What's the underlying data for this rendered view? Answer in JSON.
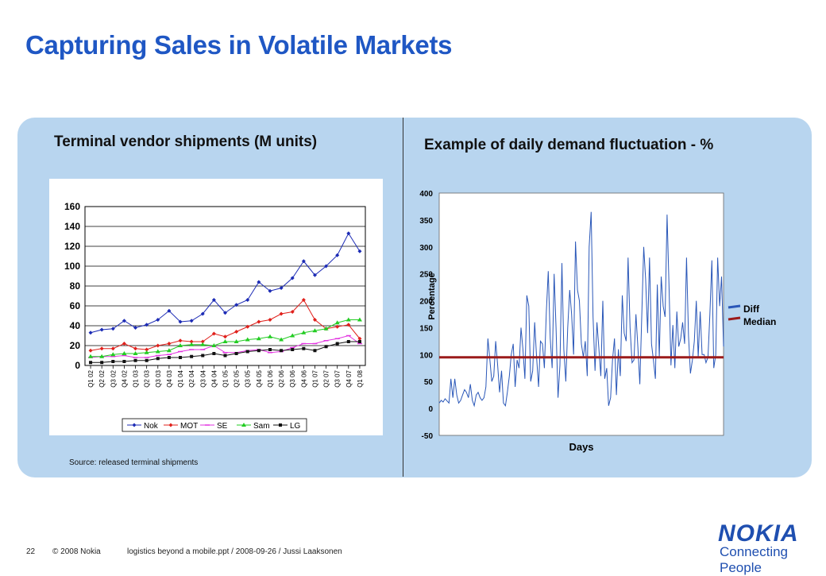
{
  "title": "Capturing Sales in Volatile Markets",
  "left_panel": {
    "title": "Terminal vendor shipments (M units)",
    "source": "Source: released terminal shipments"
  },
  "right_panel": {
    "title": "Example of daily demand fluctuation - %"
  },
  "footer": {
    "page": "22",
    "copyright": "© 2008  Nokia",
    "file": "logistics beyond a mobile.ppt / 2008-09-26 / Jussi Laaksonen"
  },
  "logo": {
    "word": "NOKIA",
    "tagline": "Connecting People"
  },
  "colors": {
    "title": "#1f57c4",
    "panel": "#b8d5ef",
    "nok": "#1c2bb5",
    "mot": "#e0201b",
    "se": "#e233e0",
    "sam": "#22cc22",
    "lg": "#111111",
    "diff": "#2a57b8",
    "median": "#9b1b1b"
  },
  "chart_data": [
    {
      "type": "line",
      "title": "Terminal vendor shipments (M units)",
      "categories": [
        "Q1 02",
        "Q2 02",
        "Q3 02",
        "Q4 02",
        "Q1 03",
        "Q2 03",
        "Q3 03",
        "Q4 03",
        "Q1 04",
        "Q2 04",
        "Q3 04",
        "Q4 04",
        "Q1 05",
        "Q2 05",
        "Q3 05",
        "Q4 05",
        "Q1 06",
        "Q2 06",
        "Q3 06",
        "Q4 06",
        "Q1 07",
        "Q2 07",
        "Q3 07",
        "Q4 07",
        "Q1 08"
      ],
      "ylim": [
        0,
        160
      ],
      "yticks": [
        "0",
        "20",
        "40",
        "60",
        "80",
        "100",
        "120",
        "140",
        "160"
      ],
      "legend": "bottom",
      "grid": true,
      "series": [
        {
          "name": "Nok",
          "values": [
            33,
            36,
            37,
            45,
            38,
            41,
            46,
            55,
            44,
            45,
            52,
            66,
            53,
            61,
            66,
            84,
            75,
            78,
            88,
            105,
            91,
            100,
            111,
            133,
            115
          ]
        },
        {
          "name": "MOT",
          "values": [
            15,
            17,
            17,
            22,
            17,
            16,
            20,
            22,
            25,
            24,
            24,
            32,
            29,
            34,
            39,
            44,
            46,
            52,
            54,
            66,
            46,
            37,
            39,
            41,
            27
          ]
        },
        {
          "name": "SE",
          "values": [
            8,
            9,
            9,
            10,
            8,
            8,
            10,
            11,
            14,
            16,
            16,
            20,
            13,
            13,
            15,
            16,
            13,
            14,
            18,
            22,
            22,
            25,
            27,
            30,
            22
          ]
        },
        {
          "name": "Sam",
          "values": [
            9,
            9,
            11,
            12,
            12,
            13,
            14,
            15,
            20,
            21,
            21,
            20,
            24,
            24,
            26,
            27,
            29,
            26,
            30,
            33,
            35,
            37,
            43,
            46,
            46
          ]
        },
        {
          "name": "LG",
          "values": [
            3,
            3,
            4,
            4,
            5,
            5,
            7,
            8,
            8,
            9,
            10,
            12,
            10,
            12,
            14,
            15,
            16,
            15,
            16,
            17,
            15,
            19,
            22,
            24,
            24
          ]
        }
      ]
    },
    {
      "type": "line",
      "title": "Example of daily demand fluctuation - %",
      "xlabel": "Days",
      "ylabel": "Percentage",
      "ylim": [
        -50,
        400
      ],
      "yticks": [
        "-50",
        "0",
        "50",
        "100",
        "150",
        "200",
        "250",
        "300",
        "350",
        "400"
      ],
      "legend": "right",
      "grid": false,
      "series": [
        {
          "name": "Diff",
          "values": [
            10,
            15,
            12,
            18,
            14,
            10,
            55,
            20,
            55,
            25,
            10,
            15,
            25,
            35,
            30,
            20,
            45,
            15,
            5,
            25,
            30,
            20,
            15,
            20,
            40,
            130,
            90,
            50,
            60,
            125,
            80,
            30,
            70,
            10,
            5,
            30,
            60,
            100,
            120,
            40,
            90,
            75,
            150,
            110,
            55,
            210,
            190,
            50,
            70,
            160,
            95,
            40,
            125,
            120,
            75,
            180,
            255,
            130,
            75,
            250,
            150,
            20,
            80,
            270,
            110,
            50,
            150,
            220,
            175,
            100,
            310,
            220,
            200,
            120,
            95,
            125,
            60,
            300,
            365,
            170,
            70,
            160,
            110,
            60,
            200,
            55,
            75,
            5,
            20,
            90,
            130,
            25,
            110,
            60,
            210,
            140,
            125,
            280,
            150,
            85,
            90,
            175,
            115,
            45,
            170,
            300,
            240,
            140,
            280,
            120,
            90,
            55,
            230,
            95,
            245,
            190,
            170,
            360,
            230,
            80,
            155,
            75,
            180,
            115,
            130,
            160,
            120,
            280,
            135,
            65,
            90,
            125,
            200,
            95,
            180,
            100,
            100,
            85,
            95,
            175,
            275,
            75,
            100,
            280,
            190,
            245,
            115
          ]
        },
        {
          "name": "Median",
          "values": [
            95
          ]
        }
      ]
    }
  ]
}
